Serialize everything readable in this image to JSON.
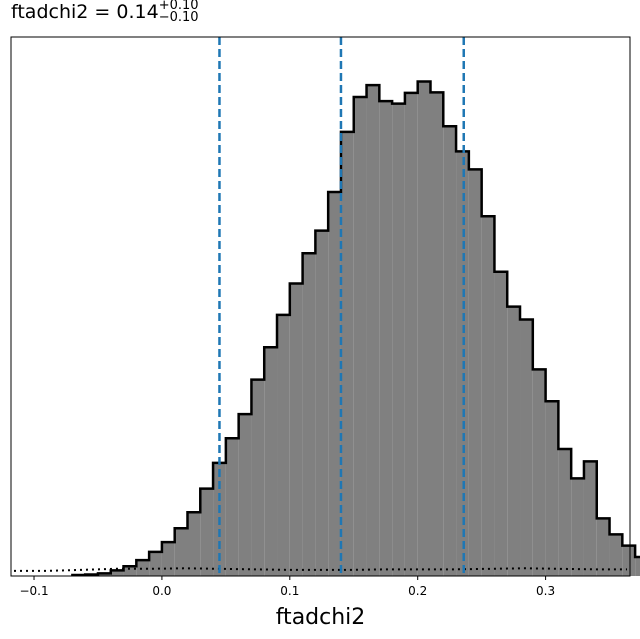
{
  "title": {
    "param": "ftadchi2",
    "value": "0.14",
    "upper": "+0.10",
    "lower": "−0.10"
  },
  "chart_data": {
    "type": "histogram",
    "xlabel": "ftadchi2",
    "ylabel": "",
    "xlim": [
      -0.118,
      0.366
    ],
    "ylim": [
      0,
      1.0
    ],
    "xticks": [
      -0.1,
      0.0,
      0.1,
      0.2,
      0.3
    ],
    "xtick_labels": [
      "−0.1",
      "0.0",
      "0.1",
      "0.2",
      "0.3"
    ],
    "bin_start": -0.07,
    "bin_width": 0.01,
    "bin_values": [
      0.002,
      0.003,
      0.005,
      0.011,
      0.019,
      0.031,
      0.047,
      0.066,
      0.093,
      0.124,
      0.17,
      0.22,
      0.268,
      0.315,
      0.382,
      0.445,
      0.508,
      0.569,
      0.628,
      0.672,
      0.747,
      0.864,
      0.932,
      0.955,
      0.924,
      0.919,
      0.94,
      0.962,
      0.941,
      0.875,
      0.826,
      0.791,
      0.7,
      0.592,
      0.524,
      0.499,
      0.402,
      0.34,
      0.247,
      0.19,
      0.223,
      0.112,
      0.081,
      0.059,
      0.037,
      0.021,
      0.011,
      0.005,
      0.003,
      0.002,
      0.001,
      0.001,
      0.0,
      0.0,
      0.001,
      0.0
    ],
    "fill_color": "#808080",
    "edge_color": "#000000",
    "quantiles": [
      0.045,
      0.14,
      0.236
    ],
    "quantile_color": "#1f77b4",
    "dotted_curve": [
      0.01,
      0.01,
      0.012,
      0.014,
      0.014,
      0.015,
      0.014,
      0.013,
      0.012,
      0.012,
      0.012,
      0.013,
      0.013,
      0.013,
      0.014,
      0.015,
      0.014,
      0.013,
      0.013
    ]
  }
}
